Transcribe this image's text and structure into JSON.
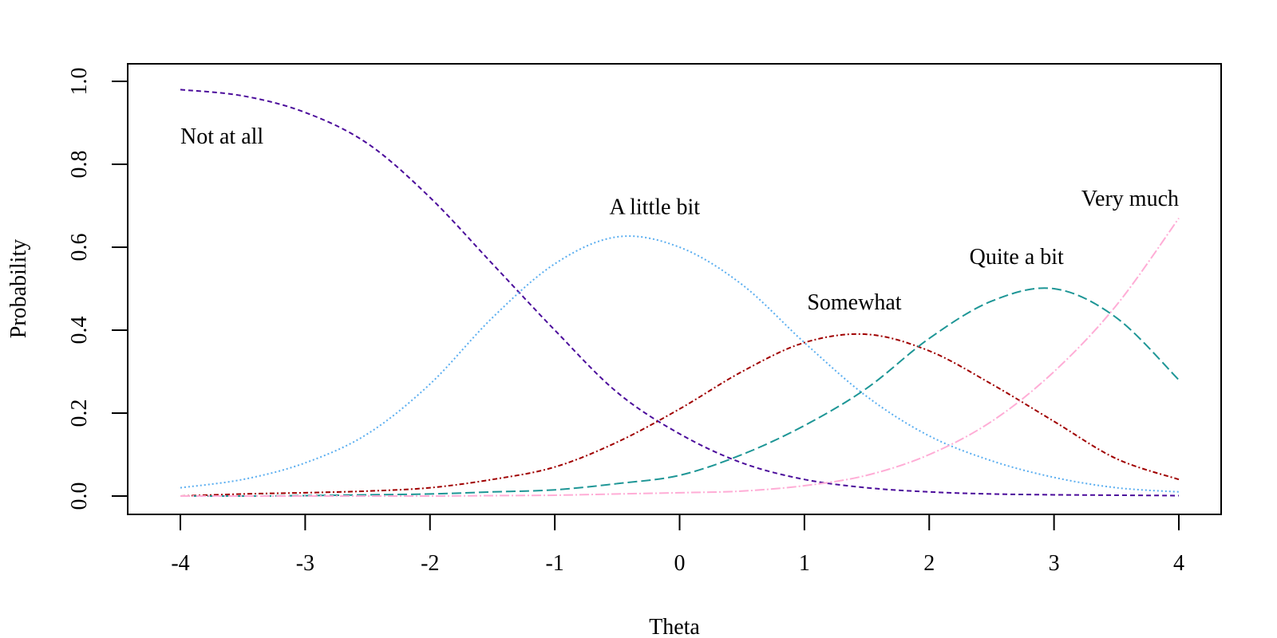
{
  "chart_data": {
    "type": "line",
    "xlabel": "Theta",
    "ylabel": "Probability",
    "xlim": [
      -4,
      4
    ],
    "ylim": [
      0,
      1
    ],
    "x_ticks": [
      "-4",
      "-3",
      "-2",
      "-1",
      "0",
      "1",
      "2",
      "3",
      "4"
    ],
    "y_ticks": [
      "0.0",
      "0.2",
      "0.4",
      "0.6",
      "0.8",
      "1.0"
    ],
    "grid": false,
    "legend": "none",
    "x": [
      -4,
      -3.5,
      -3,
      -2.5,
      -2,
      -1.5,
      -1,
      -0.5,
      0,
      0.5,
      1,
      1.5,
      2,
      2.5,
      3,
      3.5,
      4
    ],
    "series": [
      {
        "name": "Not at all",
        "color": "#4B0C9B",
        "dash": "6 4",
        "values": [
          0.98,
          0.965,
          0.925,
          0.85,
          0.72,
          0.56,
          0.4,
          0.25,
          0.15,
          0.08,
          0.04,
          0.02,
          0.01,
          0.005,
          0.003,
          0.002,
          0.001
        ]
      },
      {
        "name": "A little bit",
        "color": "#5AAEF0",
        "dash": "2 3",
        "values": [
          0.02,
          0.04,
          0.08,
          0.15,
          0.27,
          0.43,
          0.56,
          0.625,
          0.6,
          0.51,
          0.37,
          0.24,
          0.145,
          0.085,
          0.045,
          0.02,
          0.01
        ]
      },
      {
        "name": "Somewhat",
        "color": "#A00000",
        "dash": "6 3 2 3",
        "values": [
          0.0,
          0.005,
          0.008,
          0.012,
          0.02,
          0.04,
          0.07,
          0.13,
          0.21,
          0.3,
          0.37,
          0.39,
          0.35,
          0.27,
          0.18,
          0.09,
          0.04
        ]
      },
      {
        "name": "Quite a bit",
        "color": "#1E9696",
        "dash": "12 5",
        "values": [
          0.0,
          0.0,
          0.001,
          0.003,
          0.005,
          0.01,
          0.015,
          0.03,
          0.05,
          0.1,
          0.17,
          0.26,
          0.38,
          0.47,
          0.5,
          0.43,
          0.28
        ]
      },
      {
        "name": "Very much",
        "color": "#FFADD6",
        "dash": "12 3 2 3",
        "values": [
          0.0,
          0.0,
          0.0,
          0.0,
          0.0,
          0.001,
          0.002,
          0.005,
          0.008,
          0.012,
          0.025,
          0.05,
          0.1,
          0.18,
          0.3,
          0.46,
          0.67
        ]
      }
    ],
    "annotations": [
      {
        "text": "Not at all",
        "x": -4.0,
        "y": 0.85,
        "anchor": "start"
      },
      {
        "text": "A little bit",
        "x": -0.2,
        "y": 0.68,
        "anchor": "middle"
      },
      {
        "text": "Somewhat",
        "x": 1.4,
        "y": 0.45,
        "anchor": "middle"
      },
      {
        "text": "Quite a bit",
        "x": 2.7,
        "y": 0.56,
        "anchor": "middle"
      },
      {
        "text": "Very much",
        "x": 4.0,
        "y": 0.7,
        "anchor": "end"
      }
    ]
  }
}
